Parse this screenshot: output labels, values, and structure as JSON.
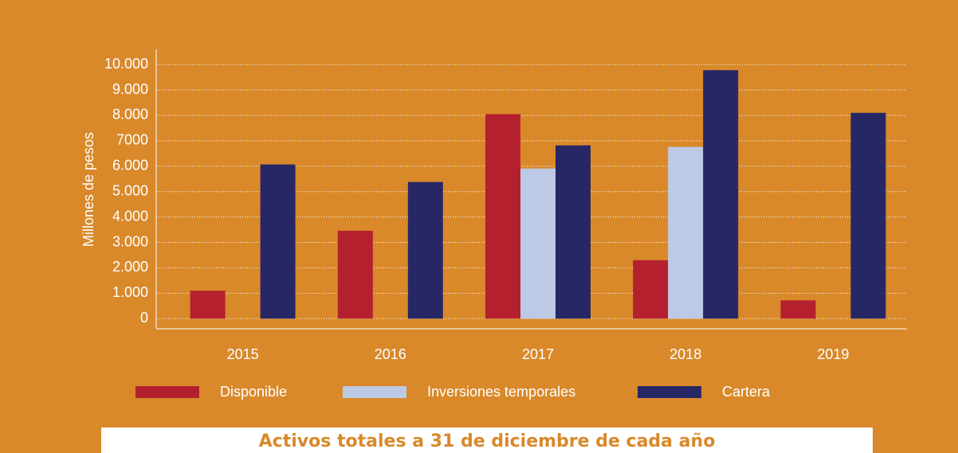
{
  "chart_data": {
    "type": "bar",
    "ylabel": "Millones de pesos",
    "caption": "Activos totales a 31 de diciembre de cada año",
    "categories": [
      "2015",
      "2016",
      "2017",
      "2018",
      "2019"
    ],
    "series": [
      {
        "name": "Disponible",
        "color": "#b5202e",
        "values": [
          1100,
          3460,
          8050,
          2300,
          720
        ]
      },
      {
        "name": "Inversiones temporales",
        "color": "#bccae6",
        "values": [
          null,
          null,
          5910,
          6760,
          null
        ]
      },
      {
        "name": "Cartera",
        "color": "#272766",
        "values": [
          6070,
          5380,
          6820,
          9780,
          8100
        ]
      }
    ],
    "ylim": [
      -400,
      10600
    ],
    "yticks": [
      0,
      {
        "value": 1000,
        "label": "1.000"
      },
      {
        "value": 2000,
        "label": "2.000"
      },
      {
        "value": 3000,
        "label": "3.000"
      },
      {
        "value": 4000,
        "label": "4.000"
      },
      {
        "value": 5000,
        "label": "5.000"
      },
      {
        "value": 6000,
        "label": "6.000"
      },
      {
        "value": 7000,
        "label": "7000"
      },
      {
        "value": 8000,
        "label": "8.000"
      },
      {
        "value": 9000,
        "label": "9.000"
      },
      {
        "value": 10000,
        "label": "10.000"
      }
    ],
    "grid": true
  }
}
